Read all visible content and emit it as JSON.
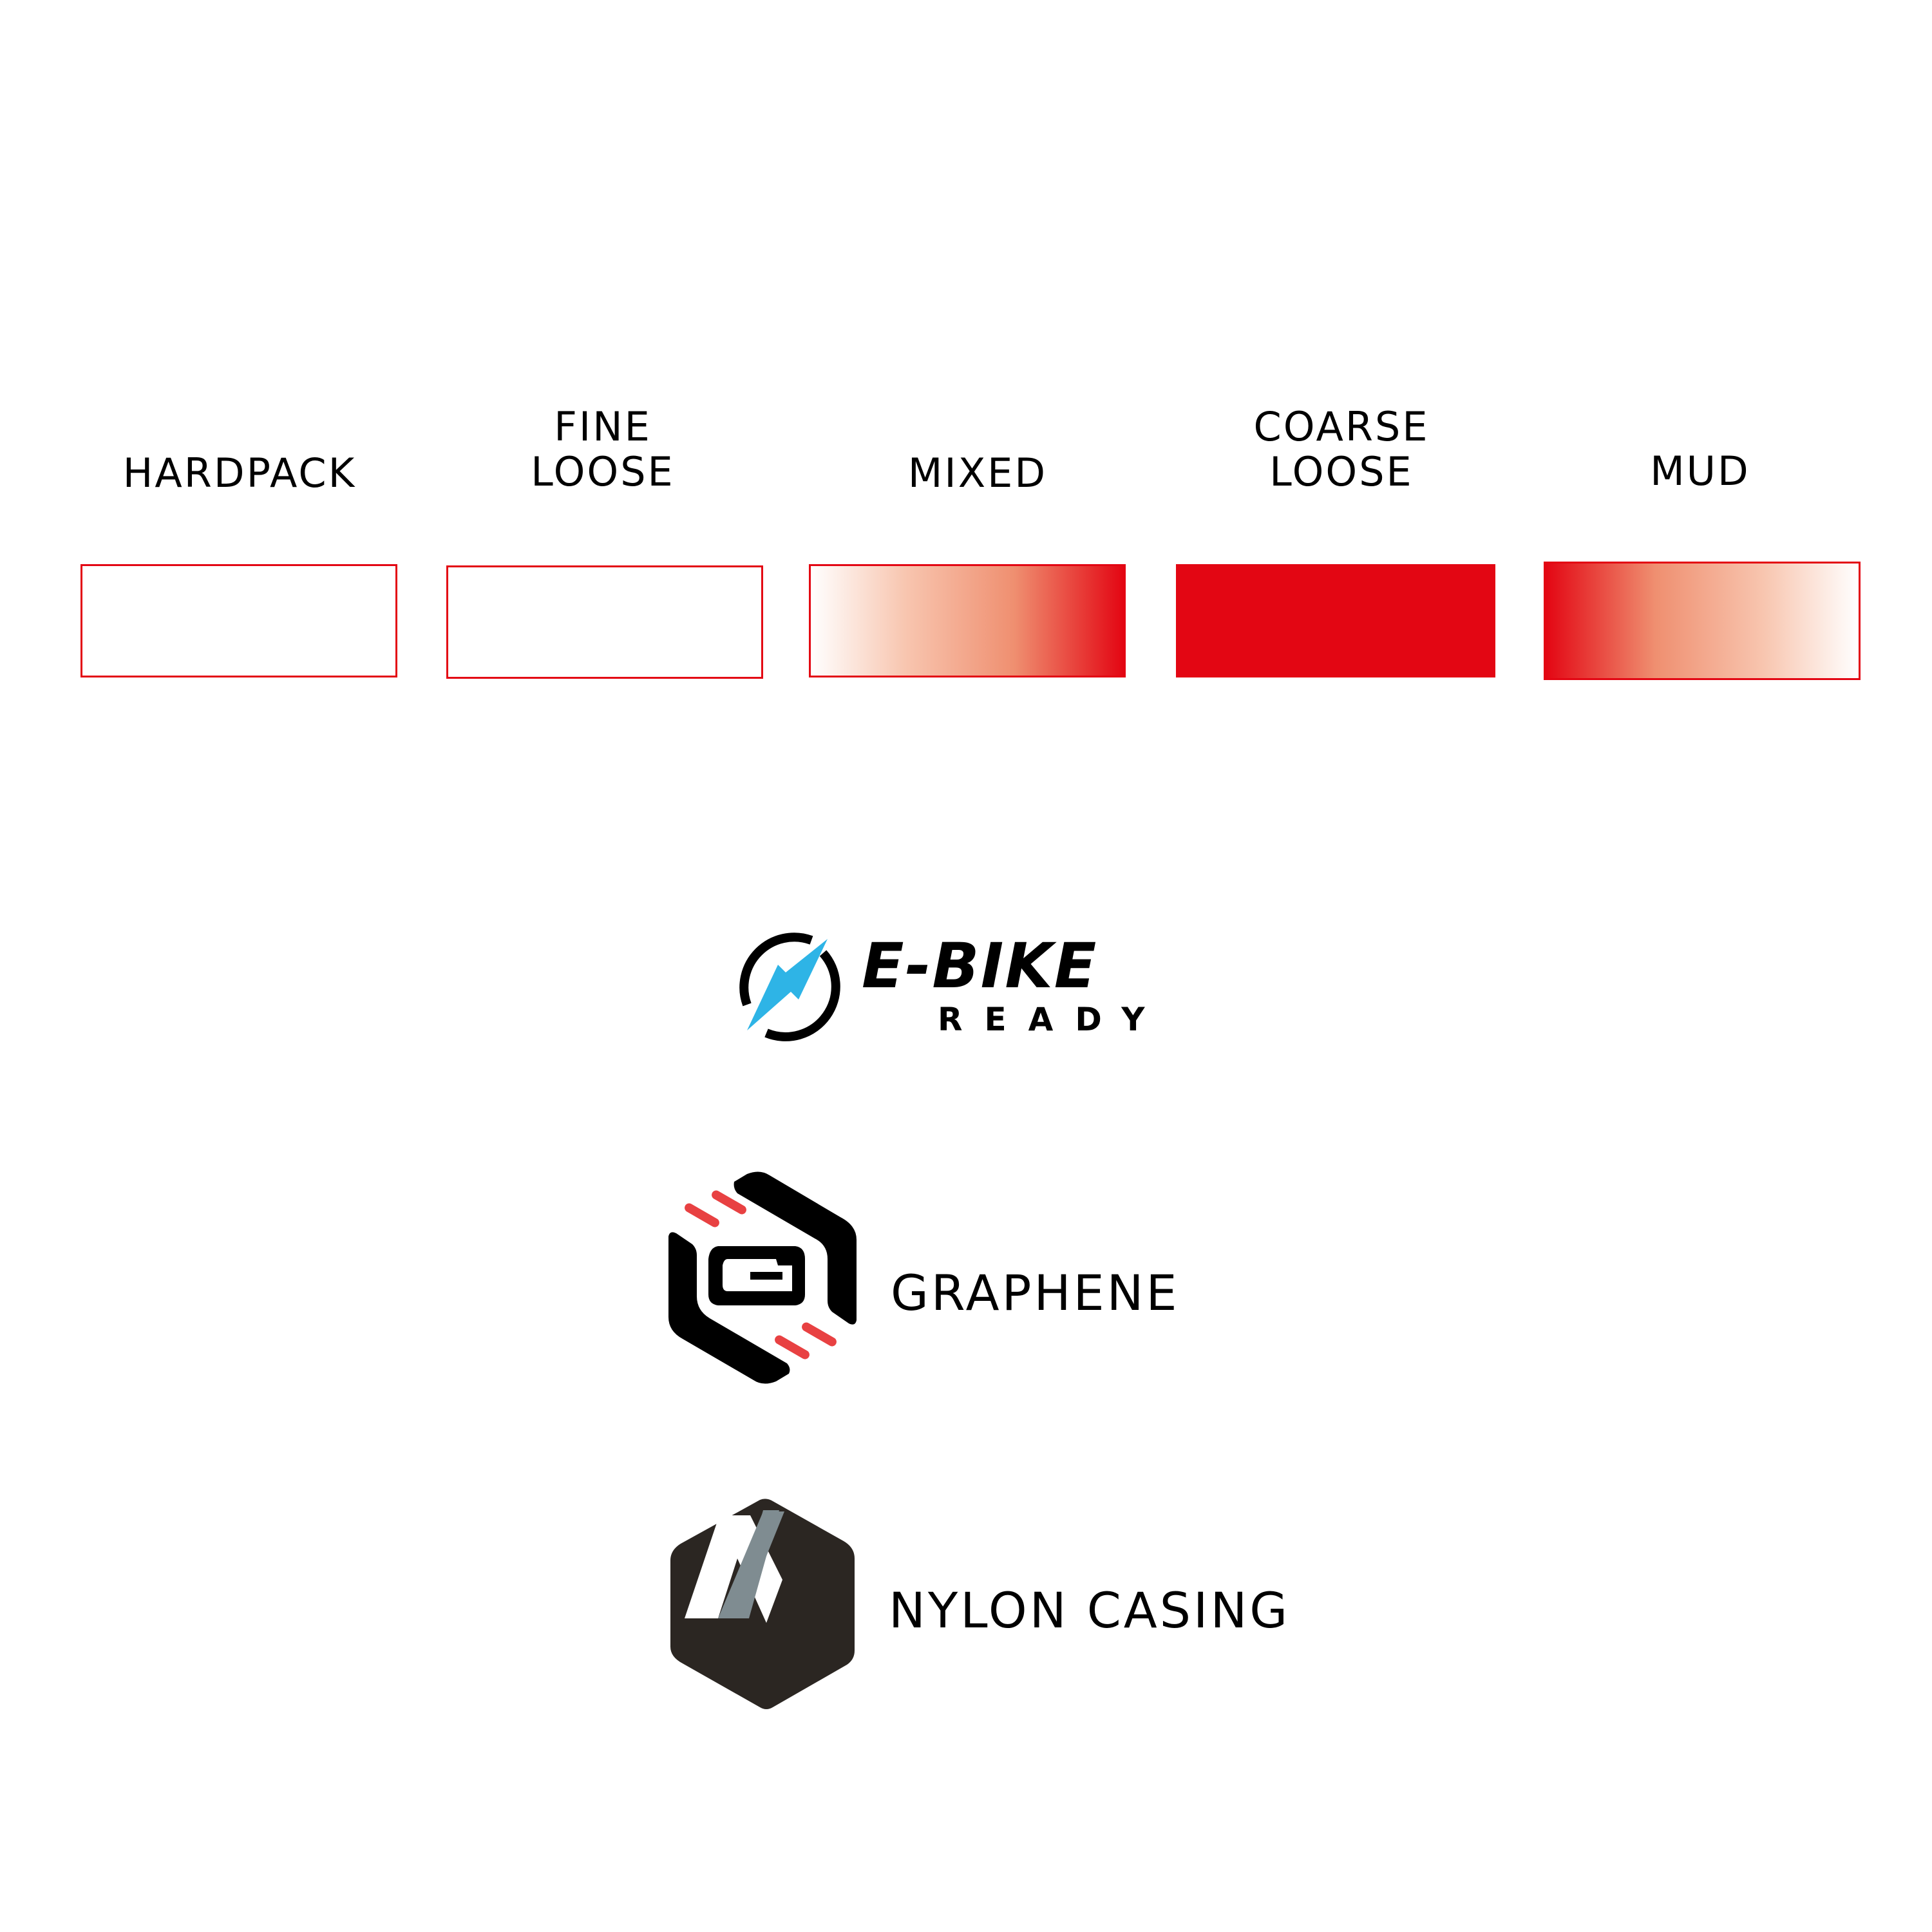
{
  "terrain": {
    "items": [
      {
        "label_lines": [
          "HARDPACK"
        ],
        "fill": "none"
      },
      {
        "label_lines": [
          "FINE",
          "LOOSE"
        ],
        "fill": "none"
      },
      {
        "label_lines": [
          "MIXED"
        ],
        "fill": "gradient-white-to-red"
      },
      {
        "label_lines": [
          "COARSE",
          "LOOSE"
        ],
        "fill": "solid-red"
      },
      {
        "label_lines": [
          "MUD"
        ],
        "fill": "gradient-red-to-white"
      }
    ],
    "accent_color": "#e30613"
  },
  "badges": {
    "ebike": {
      "title": "E-BIKE",
      "subtitle": "READY",
      "icon": "lightning-power-icon",
      "icon_color": "#2eb4e6"
    },
    "graphene": {
      "label": "GRAPHENE",
      "icon": "graphene-hexagon-g-icon",
      "accent_color": "#e84142"
    },
    "nylon": {
      "label": "NYLON CASING",
      "icon": "nylon-hexagon-n-icon",
      "hex_color": "#2b2622",
      "stripe_color": "#7f8c91"
    }
  }
}
